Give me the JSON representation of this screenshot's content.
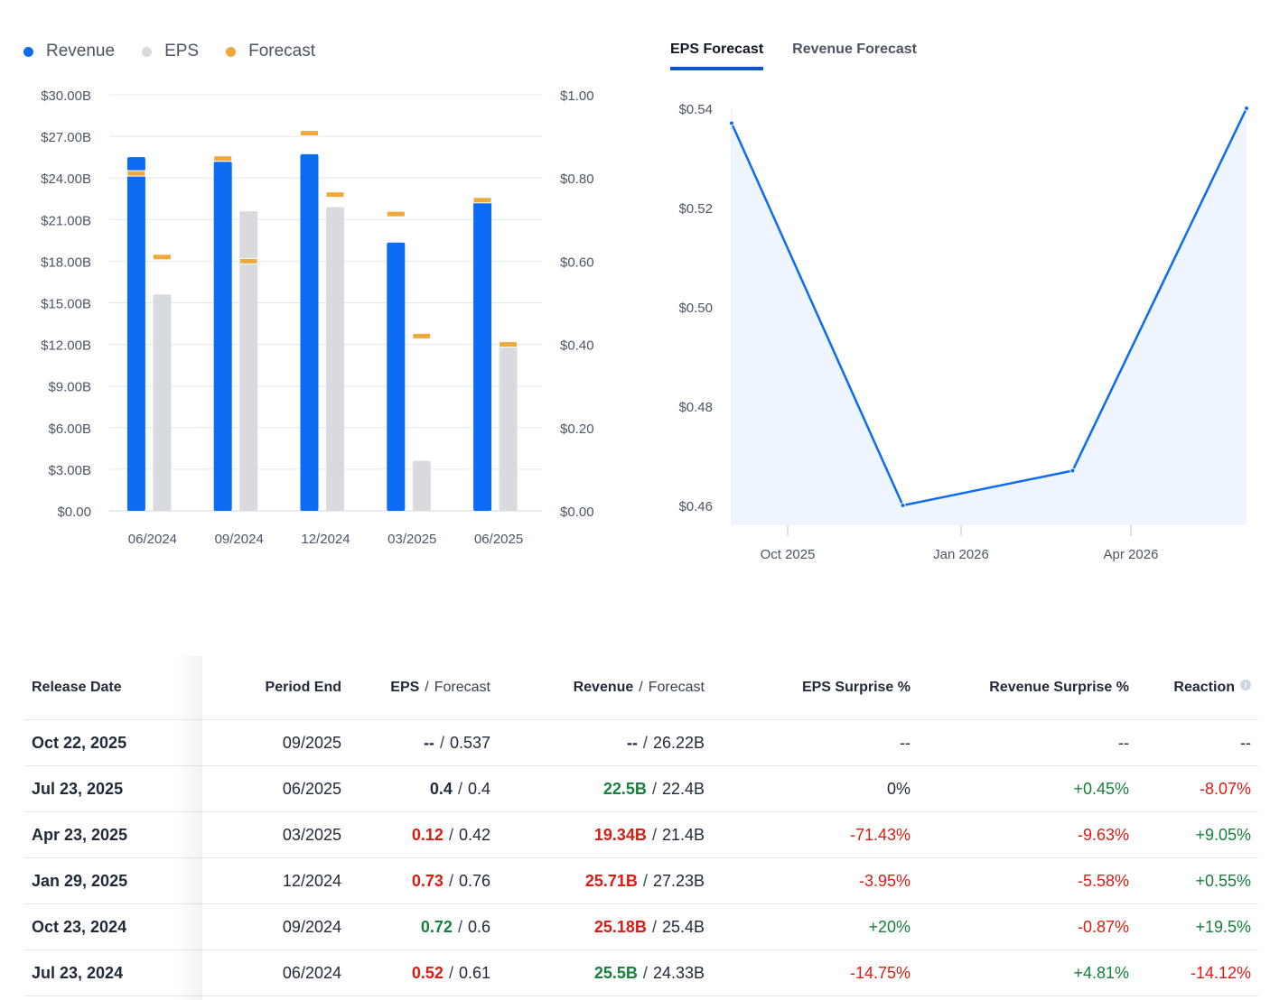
{
  "legend": {
    "revenue": {
      "label": "Revenue",
      "color": "#0b6cf3"
    },
    "eps": {
      "label": "EPS",
      "color": "#d9dadd"
    },
    "forecast": {
      "label": "Forecast",
      "color": "#f0a83a"
    }
  },
  "tabs": [
    {
      "label": "EPS Forecast",
      "active": true
    },
    {
      "label": "Revenue Forecast",
      "active": false
    }
  ],
  "chart_data": [
    {
      "type": "bar",
      "categories": [
        "06/2024",
        "09/2024",
        "12/2024",
        "03/2025",
        "06/2025"
      ],
      "series": [
        {
          "name": "Revenue",
          "axis": "left",
          "values": [
            25.5,
            25.18,
            25.71,
            19.34,
            22.5
          ]
        },
        {
          "name": "Revenue Forecast",
          "axis": "left",
          "values": [
            24.33,
            25.4,
            27.23,
            21.4,
            22.4
          ]
        },
        {
          "name": "EPS",
          "axis": "right",
          "values": [
            0.52,
            0.72,
            0.73,
            0.12,
            0.4
          ]
        },
        {
          "name": "EPS Forecast",
          "axis": "right",
          "values": [
            0.61,
            0.6,
            0.76,
            0.42,
            0.4
          ]
        }
      ],
      "y_left": {
        "min": 0,
        "max": 30,
        "ticks": [
          "$0.00",
          "$3.00B",
          "$6.00B",
          "$9.00B",
          "$12.00B",
          "$15.00B",
          "$18.00B",
          "$21.00B",
          "$24.00B",
          "$27.00B",
          "$30.00B"
        ]
      },
      "y_right": {
        "min": 0,
        "max": 1,
        "ticks": [
          "$0.00",
          "$0.20",
          "$0.40",
          "$0.60",
          "$0.80",
          "$1.00"
        ]
      },
      "grid": true
    },
    {
      "type": "area",
      "title": "EPS Forecast",
      "x_labels": [
        "Oct 2025",
        "Jan 2026",
        "Apr 2026"
      ],
      "points": [
        {
          "period": "09/2025",
          "value": 0.537
        },
        {
          "period": "12/2025",
          "value": 0.46
        },
        {
          "period": "03/2026",
          "value": 0.467
        },
        {
          "period": "06/2026",
          "value": 0.54
        }
      ],
      "y_ticks": [
        "$0.46",
        "$0.48",
        "$0.50",
        "$0.52",
        "$0.54"
      ],
      "ylim": [
        0.456,
        0.54
      ],
      "line_color": "#0b6cf3",
      "fill_color": "#eef5ff"
    }
  ],
  "table": {
    "headers": {
      "release_date": "Release Date",
      "period_end": "Period End",
      "eps": "EPS",
      "forecast": "Forecast",
      "revenue": "Revenue",
      "eps_surprise": "EPS Surprise %",
      "revenue_surprise": "Revenue Surprise %",
      "reaction": "Reaction",
      "separator": "/"
    },
    "rows": [
      {
        "date": "Oct 22, 2025",
        "period": "09/2025",
        "eps": "--",
        "eps_class": "neu",
        "eps_fc": "0.537",
        "rev": "--",
        "rev_class": "neu",
        "rev_fc": "26.22B",
        "eps_s": "--",
        "eps_s_class": "neu",
        "rev_s": "--",
        "rev_s_class": "neu",
        "react": "--",
        "react_class": "neu"
      },
      {
        "date": "Jul 23, 2025",
        "period": "06/2025",
        "eps": "0.4",
        "eps_class": "neu",
        "eps_fc": "0.4",
        "rev": "22.5B",
        "rev_class": "pos",
        "rev_fc": "22.4B",
        "eps_s": "0%",
        "eps_s_class": "neu",
        "rev_s": "+0.45%",
        "rev_s_class": "pos",
        "react": "-8.07%",
        "react_class": "neg"
      },
      {
        "date": "Apr 23, 2025",
        "period": "03/2025",
        "eps": "0.12",
        "eps_class": "neg",
        "eps_fc": "0.42",
        "rev": "19.34B",
        "rev_class": "neg",
        "rev_fc": "21.4B",
        "eps_s": "-71.43%",
        "eps_s_class": "neg",
        "rev_s": "-9.63%",
        "rev_s_class": "neg",
        "react": "+9.05%",
        "react_class": "pos"
      },
      {
        "date": "Jan 29, 2025",
        "period": "12/2024",
        "eps": "0.73",
        "eps_class": "neg",
        "eps_fc": "0.76",
        "rev": "25.71B",
        "rev_class": "neg",
        "rev_fc": "27.23B",
        "eps_s": "-3.95%",
        "eps_s_class": "neg",
        "rev_s": "-5.58%",
        "rev_s_class": "neg",
        "react": "+0.55%",
        "react_class": "pos"
      },
      {
        "date": "Oct 23, 2024",
        "period": "09/2024",
        "eps": "0.72",
        "eps_class": "pos",
        "eps_fc": "0.6",
        "rev": "25.18B",
        "rev_class": "neg",
        "rev_fc": "25.4B",
        "eps_s": "+20%",
        "eps_s_class": "pos",
        "rev_s": "-0.87%",
        "rev_s_class": "neg",
        "react": "+19.5%",
        "react_class": "pos"
      },
      {
        "date": "Jul 23, 2024",
        "period": "06/2024",
        "eps": "0.52",
        "eps_class": "neg",
        "eps_fc": "0.61",
        "rev": "25.5B",
        "rev_class": "pos",
        "rev_fc": "24.33B",
        "eps_s": "-14.75%",
        "eps_s_class": "neg",
        "rev_s": "+4.81%",
        "rev_s_class": "pos",
        "react": "-14.12%",
        "react_class": "neg"
      }
    ]
  }
}
